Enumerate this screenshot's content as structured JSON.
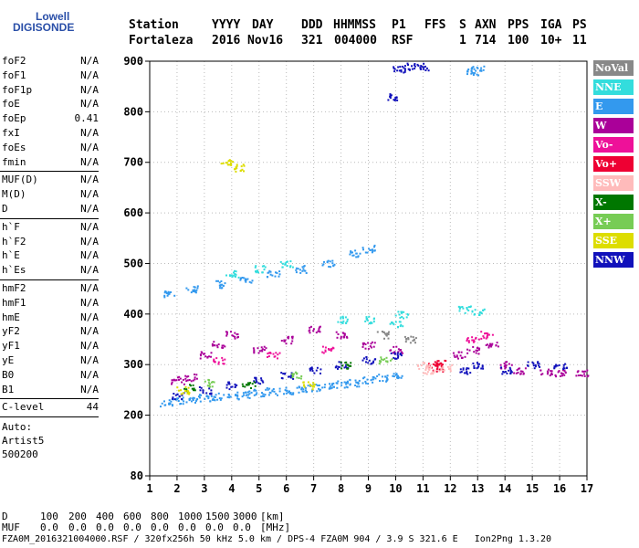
{
  "logo": {
    "line1": "Lowell",
    "line2": "DIGISONDE"
  },
  "header": {
    "labels": [
      "Station",
      "YYYY",
      "DAY",
      "DDD",
      "HHMMSS",
      "P1",
      "FFS",
      "S",
      "AXN",
      "PPS",
      "IGA",
      "PS"
    ],
    "values": [
      "Fortaleza",
      "2016",
      "Nov16",
      "321",
      "004000",
      "RSF",
      "",
      "1",
      "714",
      "100",
      "10+",
      "11"
    ]
  },
  "params_group1": [
    {
      "name": "foF2",
      "value": "N/A"
    },
    {
      "name": "foF1",
      "value": "N/A"
    },
    {
      "name": "foF1p",
      "value": "N/A"
    },
    {
      "name": "foE",
      "value": "N/A"
    },
    {
      "name": "foEp",
      "value": "0.41"
    },
    {
      "name": "fxI",
      "value": "N/A"
    },
    {
      "name": "foEs",
      "value": "N/A"
    },
    {
      "name": "fmin",
      "value": "N/A"
    }
  ],
  "params_group2": [
    {
      "name": "MUF(D)",
      "value": "N/A"
    },
    {
      "name": "M(D)",
      "value": "N/A"
    },
    {
      "name": "D",
      "value": "N/A"
    }
  ],
  "params_group3": [
    {
      "name": "h`F",
      "value": "N/A"
    },
    {
      "name": "h`F2",
      "value": "N/A"
    },
    {
      "name": "h`E",
      "value": "N/A"
    },
    {
      "name": "h`Es",
      "value": "N/A"
    }
  ],
  "params_group4": [
    {
      "name": "hmF2",
      "value": "N/A"
    },
    {
      "name": "hmF1",
      "value": "N/A"
    },
    {
      "name": "hmE",
      "value": "N/A"
    },
    {
      "name": "yF2",
      "value": "N/A"
    },
    {
      "name": "yF1",
      "value": "N/A"
    },
    {
      "name": "yE",
      "value": "N/A"
    },
    {
      "name": "B0",
      "value": "N/A"
    },
    {
      "name": "B1",
      "value": "N/A"
    }
  ],
  "clevel": {
    "name": "C-level",
    "value": "44"
  },
  "auto": {
    "line1": "Auto:",
    "line2": "Artist5",
    "line3": "500200"
  },
  "legend": [
    {
      "label": "NoVal",
      "color": "#888888"
    },
    {
      "label": "NNE",
      "color": "#33dddd"
    },
    {
      "label": "E",
      "color": "#3399ee"
    },
    {
      "label": "W",
      "color": "#aa0099"
    },
    {
      "label": "Vo-",
      "color": "#ee1199"
    },
    {
      "label": "Vo+",
      "color": "#ee0033"
    },
    {
      "label": "SSW",
      "color": "#ffbbbb"
    },
    {
      "label": "X-",
      "color": "#007700"
    },
    {
      "label": "X+",
      "color": "#77cc55"
    },
    {
      "label": "SSE",
      "color": "#dddd00"
    },
    {
      "label": "NNW",
      "color": "#1111bb"
    }
  ],
  "bottom_rows": {
    "d_label": "D",
    "d_values": [
      "100",
      "200",
      "400",
      "600",
      "800",
      "1000",
      "1500",
      "3000",
      "[km]"
    ],
    "muf_label": "MUF",
    "muf_values": [
      "0.0",
      "0.0",
      "0.0",
      "0.0",
      "0.0",
      "0.0",
      "0.0",
      "0.0",
      "[MHz]"
    ]
  },
  "footer": "FZA0M_2016321004000.RSF / 320fx256h 50 kHz 5.0 km / DPS-4 FZA0M 904 / 3.9 S 321.6 E   Ion2Png 1.3.20",
  "chart_data": {
    "type": "scatter",
    "xlim": [
      1,
      17
    ],
    "ylim": [
      80,
      900
    ],
    "x_ticks": [
      1,
      2,
      3,
      4,
      5,
      6,
      7,
      8,
      9,
      10,
      11,
      12,
      13,
      14,
      15,
      16,
      17
    ],
    "y_ticks": [
      80,
      200,
      300,
      400,
      500,
      600,
      700,
      800,
      900
    ],
    "grid": true,
    "legend_position": "right",
    "series": [
      {
        "name": "E",
        "color": "#3399ee",
        "points": [
          [
            1.6,
            225
          ],
          [
            2.0,
            230
          ],
          [
            2.5,
            232
          ],
          [
            3.0,
            235
          ],
          [
            3.5,
            238
          ],
          [
            4.0,
            240
          ],
          [
            4.5,
            242
          ],
          [
            5.0,
            245
          ],
          [
            5.5,
            248
          ],
          [
            6.0,
            250
          ],
          [
            6.5,
            252
          ],
          [
            7.0,
            255
          ],
          [
            7.5,
            258
          ],
          [
            8.0,
            262
          ],
          [
            8.5,
            265
          ],
          [
            9.0,
            270
          ],
          [
            9.5,
            275
          ],
          [
            10.0,
            280
          ],
          [
            1.7,
            440
          ],
          [
            2.5,
            450
          ],
          [
            3.5,
            460
          ],
          [
            4.5,
            470
          ],
          [
            5.5,
            480
          ],
          [
            6.5,
            490
          ],
          [
            7.5,
            500
          ],
          [
            8.5,
            520
          ],
          [
            9.0,
            530
          ],
          [
            12.8,
            880
          ],
          [
            13.0,
            885
          ]
        ]
      },
      {
        "name": "W",
        "color": "#aa0099",
        "points": [
          [
            3.0,
            320
          ],
          [
            3.5,
            340
          ],
          [
            4.0,
            360
          ],
          [
            5.0,
            330
          ],
          [
            6.0,
            350
          ],
          [
            7.0,
            370
          ],
          [
            8.0,
            360
          ],
          [
            9.0,
            340
          ],
          [
            10.0,
            330
          ],
          [
            12.3,
            320
          ],
          [
            12.8,
            330
          ],
          [
            13.5,
            340
          ],
          [
            14.0,
            300
          ],
          [
            14.5,
            290
          ],
          [
            15.5,
            285
          ],
          [
            16.0,
            285
          ],
          [
            16.8,
            285
          ],
          [
            2.0,
            270
          ],
          [
            2.5,
            275
          ]
        ]
      },
      {
        "name": "NNW",
        "color": "#1111bb",
        "points": [
          [
            2.0,
            240
          ],
          [
            3.0,
            250
          ],
          [
            4.0,
            260
          ],
          [
            5.0,
            270
          ],
          [
            6.0,
            280
          ],
          [
            7.0,
            290
          ],
          [
            8.0,
            300
          ],
          [
            9.0,
            310
          ],
          [
            10.0,
            320
          ],
          [
            12.5,
            290
          ],
          [
            13.0,
            300
          ],
          [
            14.0,
            290
          ],
          [
            15.0,
            300
          ],
          [
            16.0,
            300
          ],
          [
            10.1,
            885
          ],
          [
            10.5,
            890
          ],
          [
            11.0,
            890
          ],
          [
            9.8,
            830
          ]
        ]
      },
      {
        "name": "NNE",
        "color": "#33dddd",
        "points": [
          [
            4.0,
            480
          ],
          [
            5.0,
            490
          ],
          [
            6.0,
            500
          ],
          [
            9.0,
            390
          ],
          [
            10.0,
            380
          ],
          [
            10.2,
            400
          ],
          [
            12.5,
            410
          ],
          [
            13.0,
            405
          ],
          [
            8.0,
            390
          ]
        ]
      },
      {
        "name": "Vo-",
        "color": "#ee1199",
        "points": [
          [
            3.5,
            310
          ],
          [
            5.5,
            320
          ],
          [
            7.5,
            330
          ],
          [
            12.8,
            350
          ],
          [
            13.3,
            360
          ]
        ]
      },
      {
        "name": "Vo+",
        "color": "#ee0033",
        "points": [
          [
            11.4,
            300
          ],
          [
            11.6,
            305
          ],
          [
            11.5,
            295
          ]
        ]
      },
      {
        "name": "SSW",
        "color": "#ffbbbb",
        "points": [
          [
            11.0,
            300
          ],
          [
            11.2,
            290
          ],
          [
            11.8,
            295
          ]
        ]
      },
      {
        "name": "X-",
        "color": "#007700",
        "points": [
          [
            2.4,
            255
          ],
          [
            4.6,
            260
          ],
          [
            8.2,
            300
          ]
        ]
      },
      {
        "name": "X+",
        "color": "#77cc55",
        "points": [
          [
            3.2,
            265
          ],
          [
            6.4,
            280
          ],
          [
            9.6,
            310
          ]
        ]
      },
      {
        "name": "SSE",
        "color": "#dddd00",
        "points": [
          [
            3.8,
            700
          ],
          [
            4.2,
            690
          ],
          [
            2.2,
            250
          ],
          [
            6.8,
            260
          ]
        ]
      },
      {
        "name": "NoVal",
        "color": "#888888",
        "points": [
          [
            9.5,
            360
          ],
          [
            10.5,
            350
          ]
        ]
      }
    ]
  }
}
